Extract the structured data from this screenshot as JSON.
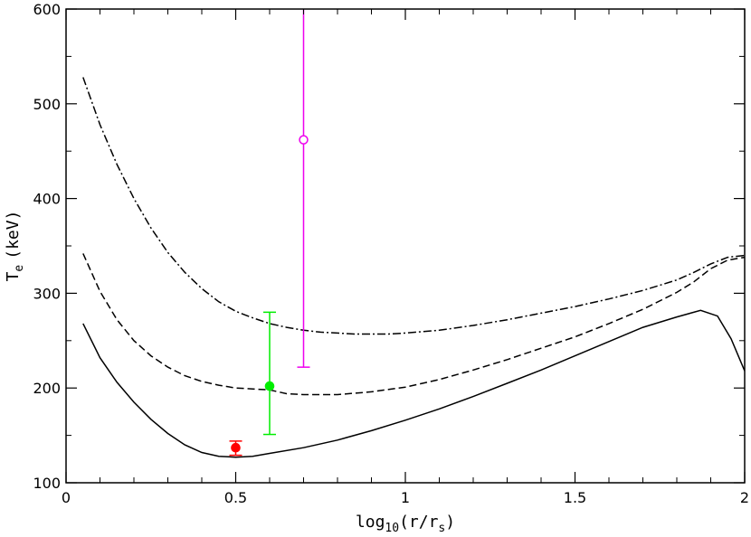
{
  "chart_data": {
    "type": "line",
    "title": "",
    "xlabel": {
      "base": "log",
      "sub1": "10",
      "mid": "(r/r",
      "sub2": "s",
      "end": ")"
    },
    "ylabel": {
      "base": "T",
      "sub": "e",
      "unit": "(keV)"
    },
    "xlim": [
      0,
      2
    ],
    "ylim": [
      100,
      600
    ],
    "x_ticks": [
      0,
      0.5,
      1,
      1.5,
      2
    ],
    "x_tick_labels": [
      "0",
      "0.5",
      "1",
      "1.5",
      "2"
    ],
    "y_ticks": [
      100,
      200,
      300,
      400,
      500,
      600
    ],
    "y_tick_labels": [
      "100",
      "200",
      "300",
      "400",
      "500",
      "600"
    ],
    "x_minor_step": 0.1,
    "y_minor_step": 50,
    "grid": false,
    "legend": "none",
    "series": [
      {
        "style": "dash-dot",
        "color": "#000000",
        "points": [
          [
            0.05,
            528
          ],
          [
            0.1,
            478
          ],
          [
            0.15,
            436
          ],
          [
            0.2,
            400
          ],
          [
            0.25,
            369
          ],
          [
            0.3,
            343
          ],
          [
            0.35,
            322
          ],
          [
            0.4,
            305
          ],
          [
            0.45,
            291
          ],
          [
            0.5,
            281
          ],
          [
            0.55,
            274
          ],
          [
            0.6,
            268
          ],
          [
            0.65,
            264
          ],
          [
            0.7,
            261
          ],
          [
            0.75,
            259
          ],
          [
            0.8,
            258
          ],
          [
            0.85,
            257
          ],
          [
            0.9,
            257
          ],
          [
            0.95,
            257
          ],
          [
            1.0,
            258
          ],
          [
            1.1,
            261
          ],
          [
            1.2,
            266
          ],
          [
            1.3,
            272
          ],
          [
            1.4,
            279
          ],
          [
            1.5,
            286
          ],
          [
            1.6,
            294
          ],
          [
            1.7,
            303
          ],
          [
            1.8,
            314
          ],
          [
            1.85,
            322
          ],
          [
            1.9,
            331
          ],
          [
            1.95,
            338
          ],
          [
            2.0,
            340
          ]
        ]
      },
      {
        "style": "dashed",
        "color": "#000000",
        "points": [
          [
            0.05,
            342
          ],
          [
            0.1,
            302
          ],
          [
            0.15,
            272
          ],
          [
            0.2,
            250
          ],
          [
            0.25,
            234
          ],
          [
            0.3,
            222
          ],
          [
            0.35,
            213
          ],
          [
            0.4,
            207
          ],
          [
            0.45,
            203
          ],
          [
            0.5,
            200
          ],
          [
            0.55,
            199
          ],
          [
            0.6,
            198
          ],
          [
            0.65,
            194
          ],
          [
            0.7,
            193
          ],
          [
            0.8,
            193
          ],
          [
            0.9,
            196
          ],
          [
            1.0,
            201
          ],
          [
            1.1,
            209
          ],
          [
            1.2,
            219
          ],
          [
            1.3,
            230
          ],
          [
            1.4,
            242
          ],
          [
            1.5,
            254
          ],
          [
            1.6,
            268
          ],
          [
            1.7,
            283
          ],
          [
            1.8,
            301
          ],
          [
            1.85,
            312
          ],
          [
            1.9,
            326
          ],
          [
            1.95,
            335
          ],
          [
            2.0,
            338
          ]
        ]
      },
      {
        "style": "solid",
        "color": "#000000",
        "points": [
          [
            0.05,
            268
          ],
          [
            0.1,
            232
          ],
          [
            0.15,
            206
          ],
          [
            0.2,
            185
          ],
          [
            0.25,
            167
          ],
          [
            0.3,
            152
          ],
          [
            0.35,
            140
          ],
          [
            0.4,
            132
          ],
          [
            0.45,
            128
          ],
          [
            0.5,
            127
          ],
          [
            0.55,
            128
          ],
          [
            0.6,
            131
          ],
          [
            0.7,
            137
          ],
          [
            0.8,
            145
          ],
          [
            0.9,
            155
          ],
          [
            1.0,
            166
          ],
          [
            1.1,
            178
          ],
          [
            1.2,
            191
          ],
          [
            1.3,
            205
          ],
          [
            1.4,
            219
          ],
          [
            1.5,
            234
          ],
          [
            1.6,
            249
          ],
          [
            1.7,
            264
          ],
          [
            1.8,
            275
          ],
          [
            1.87,
            282
          ],
          [
            1.92,
            276
          ],
          [
            1.96,
            252
          ],
          [
            2.0,
            218
          ]
        ]
      }
    ],
    "error_points": [
      {
        "x": 0.5,
        "y": 137,
        "ylow": 129,
        "yhigh": 144,
        "color": "#ff0000",
        "marker": "filled-circle"
      },
      {
        "x": 0.6,
        "y": 202,
        "ylow": 151,
        "yhigh": 280,
        "color": "#00ee00",
        "marker": "filled-circle"
      },
      {
        "x": 0.7,
        "y": 462,
        "ylow": 222,
        "yhigh": 600,
        "color": "#ee00ee",
        "marker": "open-circle"
      }
    ]
  }
}
